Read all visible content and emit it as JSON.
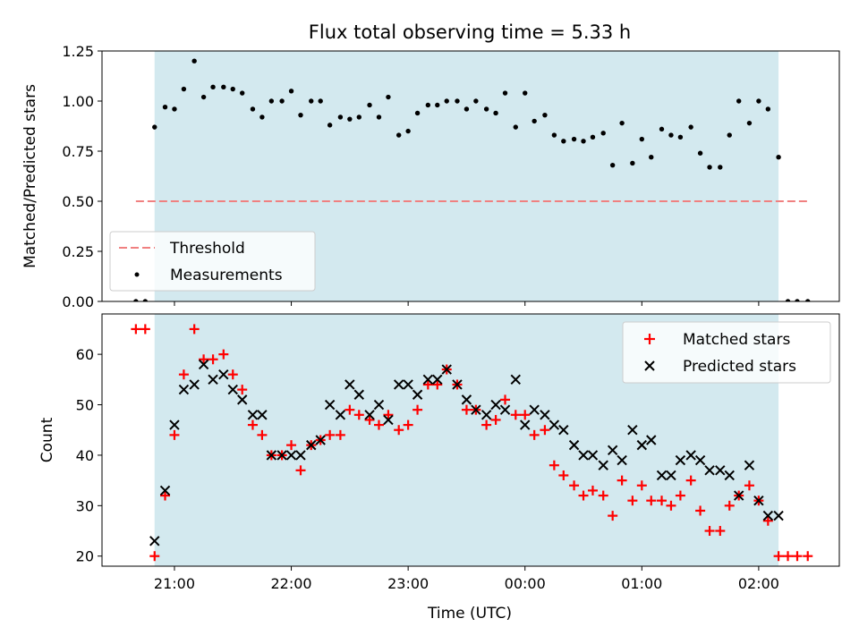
{
  "chart_data": {
    "type": "scatter",
    "title": "Flux total observing time = 5.33 h",
    "xlabel": "Time (UTC)",
    "x_tick_labels": [
      "21:00",
      "22:00",
      "23:00",
      "00:00",
      "01:00",
      "02:00"
    ],
    "x_tick_hours": [
      21,
      22,
      23,
      24,
      25,
      26
    ],
    "xlim": [
      20.38,
      26.69
    ],
    "shaded_span": [
      20.83,
      26.17
    ],
    "shade_color": "#d3e9ef",
    "panels": [
      {
        "name": "ratio",
        "ylabel": "Matched/Predicted stars",
        "ylim": [
          0,
          1.25
        ],
        "y_ticks": [
          0,
          0.25,
          0.5,
          0.75,
          1.0,
          1.25
        ],
        "y_tick_labels": [
          "0.00",
          "0.25",
          "0.50",
          "0.75",
          "1.00",
          "1.25"
        ],
        "threshold": {
          "name": "Threshold",
          "value": 0.5,
          "x_range": [
            20.67,
            26.42
          ],
          "color": "#f08080"
        },
        "legend_position": "lower-left",
        "series": [
          {
            "name": "Measurements",
            "marker": "dot",
            "color": "#000000",
            "x": [
              20.67,
              20.75,
              20.83,
              20.92,
              21.0,
              21.08,
              21.17,
              21.25,
              21.33,
              21.42,
              21.5,
              21.58,
              21.67,
              21.75,
              21.83,
              21.92,
              22.0,
              22.08,
              22.17,
              22.25,
              22.33,
              22.42,
              22.5,
              22.58,
              22.67,
              22.75,
              22.83,
              22.92,
              23.0,
              23.08,
              23.17,
              23.25,
              23.33,
              23.42,
              23.5,
              23.58,
              23.67,
              23.75,
              23.83,
              23.92,
              24.0,
              24.08,
              24.17,
              24.25,
              24.33,
              24.42,
              24.5,
              24.58,
              24.67,
              24.75,
              24.83,
              24.92,
              25.0,
              25.08,
              25.17,
              25.25,
              25.33,
              25.42,
              25.5,
              25.58,
              25.67,
              25.75,
              25.83,
              25.92,
              26.0,
              26.08,
              26.17,
              26.25,
              26.33,
              26.42
            ],
            "y": [
              0.0,
              0.0,
              0.87,
              0.97,
              0.96,
              1.06,
              1.2,
              1.02,
              1.07,
              1.07,
              1.06,
              1.04,
              0.96,
              0.92,
              1.0,
              1.0,
              1.05,
              0.93,
              1.0,
              1.0,
              0.88,
              0.92,
              0.91,
              0.92,
              0.98,
              0.92,
              1.02,
              0.83,
              0.85,
              0.94,
              0.98,
              0.98,
              1.0,
              1.0,
              0.96,
              1.0,
              0.96,
              0.94,
              1.04,
              0.87,
              1.04,
              0.9,
              0.93,
              0.83,
              0.8,
              0.81,
              0.8,
              0.82,
              0.84,
              0.68,
              0.89,
              0.69,
              0.81,
              0.72,
              0.86,
              0.83,
              0.82,
              0.87,
              0.74,
              0.67,
              0.67,
              0.83,
              1.0,
              0.89,
              1.0,
              0.96,
              0.72,
              0.0,
              0.0,
              0.0
            ]
          }
        ]
      },
      {
        "name": "count",
        "ylabel": "Count",
        "ylim": [
          18,
          68
        ],
        "y_ticks": [
          20,
          30,
          40,
          50,
          60
        ],
        "y_tick_labels": [
          "20",
          "30",
          "40",
          "50",
          "60"
        ],
        "legend_position": "upper-right",
        "series": [
          {
            "name": "Matched stars",
            "marker": "plus",
            "color": "#ff0000",
            "x": [
              20.67,
              20.75,
              20.83,
              20.92,
              21.0,
              21.08,
              21.17,
              21.25,
              21.33,
              21.42,
              21.5,
              21.58,
              21.67,
              21.75,
              21.83,
              21.92,
              22.0,
              22.08,
              22.17,
              22.25,
              22.33,
              22.42,
              22.5,
              22.58,
              22.67,
              22.75,
              22.83,
              22.92,
              23.0,
              23.08,
              23.17,
              23.25,
              23.33,
              23.42,
              23.5,
              23.58,
              23.67,
              23.75,
              23.83,
              23.92,
              24.0,
              24.08,
              24.17,
              24.25,
              24.33,
              24.42,
              24.5,
              24.58,
              24.67,
              24.75,
              24.83,
              24.92,
              25.0,
              25.08,
              25.17,
              25.25,
              25.33,
              25.42,
              25.5,
              25.58,
              25.67,
              25.75,
              25.83,
              25.92,
              26.0,
              26.08,
              26.17,
              26.25,
              26.33,
              26.42
            ],
            "y": [
              65,
              65,
              20,
              32,
              44,
              56,
              65,
              59,
              59,
              60,
              56,
              53,
              46,
              44,
              40,
              40,
              42,
              37,
              42,
              43,
              44,
              44,
              49,
              48,
              47,
              46,
              48,
              45,
              46,
              49,
              54,
              54,
              57,
              54,
              49,
              49,
              46,
              47,
              51,
              48,
              48,
              44,
              45,
              38,
              36,
              34,
              32,
              33,
              32,
              28,
              35,
              31,
              34,
              31,
              31,
              30,
              32,
              35,
              29,
              25,
              25,
              30,
              32,
              34,
              31,
              27,
              20,
              20,
              20,
              20
            ]
          },
          {
            "name": "Predicted stars",
            "marker": "x",
            "color": "#000000",
            "x": [
              20.83,
              20.92,
              21.0,
              21.08,
              21.17,
              21.25,
              21.33,
              21.42,
              21.5,
              21.58,
              21.67,
              21.75,
              21.83,
              21.92,
              22.0,
              22.08,
              22.17,
              22.25,
              22.33,
              22.42,
              22.5,
              22.58,
              22.67,
              22.75,
              22.83,
              22.92,
              23.0,
              23.08,
              23.17,
              23.25,
              23.33,
              23.42,
              23.5,
              23.58,
              23.67,
              23.75,
              23.83,
              23.92,
              24.0,
              24.08,
              24.17,
              24.25,
              24.33,
              24.42,
              24.5,
              24.58,
              24.67,
              24.75,
              24.83,
              24.92,
              25.0,
              25.08,
              25.17,
              25.25,
              25.33,
              25.42,
              25.5,
              25.58,
              25.67,
              25.75,
              25.83,
              25.92,
              26.0,
              26.08,
              26.17
            ],
            "y": [
              23,
              33,
              46,
              53,
              54,
              58,
              55,
              56,
              53,
              51,
              48,
              48,
              40,
              40,
              40,
              40,
              42,
              43,
              50,
              48,
              54,
              52,
              48,
              50,
              47,
              54,
              54,
              52,
              55,
              55,
              57,
              54,
              51,
              49,
              48,
              50,
              49,
              55,
              46,
              49,
              48,
              46,
              45,
              42,
              40,
              40,
              38,
              41,
              39,
              45,
              42,
              43,
              36,
              36,
              39,
              40,
              39,
              37,
              37,
              36,
              32,
              38,
              31,
              28,
              28
            ]
          }
        ]
      }
    ]
  }
}
